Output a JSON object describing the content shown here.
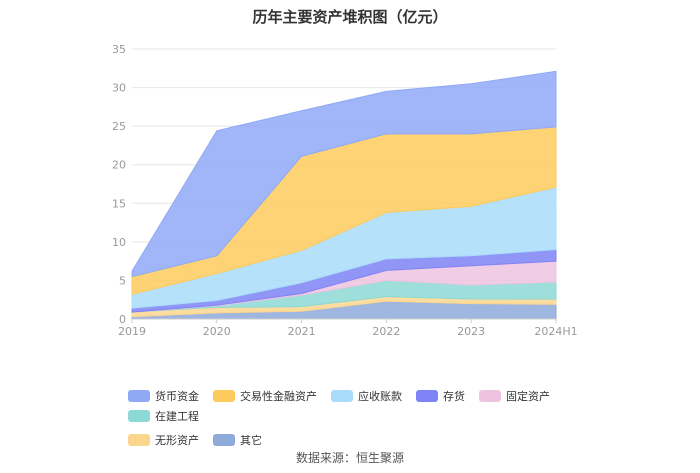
{
  "chart_data": {
    "type": "area",
    "stacked": true,
    "title": "历年主要资产堆积图（亿元）",
    "categories": [
      "2019",
      "2020",
      "2021",
      "2022",
      "2023",
      "2024H1"
    ],
    "ylim": [
      0,
      35
    ],
    "yticks": [
      "0",
      "5",
      "10",
      "15",
      "20",
      "25",
      "30",
      "35"
    ],
    "grid": true,
    "legend_position": "bottom",
    "series": [
      {
        "name": "其它",
        "color": "#8eaadb",
        "values": [
          0.3,
          0.8,
          1.0,
          2.3,
          2.0,
          1.9
        ]
      },
      {
        "name": "无形资产",
        "color": "#fbd78e",
        "values": [
          0.6,
          0.7,
          0.6,
          0.6,
          0.6,
          0.7
        ]
      },
      {
        "name": "在建工程",
        "color": "#8dd9d6",
        "values": [
          0.0,
          0.2,
          1.5,
          2.1,
          1.8,
          2.2
        ]
      },
      {
        "name": "固定资产",
        "color": "#eec3e0",
        "values": [
          0.0,
          0.1,
          0.2,
          1.3,
          2.5,
          2.7
        ]
      },
      {
        "name": "存货",
        "color": "#7e84f5",
        "values": [
          0.5,
          0.6,
          1.4,
          1.5,
          1.3,
          1.5
        ]
      },
      {
        "name": "应收账款",
        "color": "#a9dcfa",
        "values": [
          1.8,
          3.5,
          4.2,
          6.0,
          6.4,
          8.1
        ]
      },
      {
        "name": "交易性金融资产",
        "color": "#fdcb5d",
        "values": [
          2.3,
          2.3,
          12.2,
          10.2,
          9.4,
          7.8
        ]
      },
      {
        "name": "货币资金",
        "color": "#8fa9f7",
        "values": [
          0.7,
          16.2,
          5.9,
          5.5,
          6.5,
          7.2
        ]
      }
    ],
    "legend_order": [
      "货币资金",
      "交易性金融资产",
      "应收账款",
      "存货",
      "固定资产",
      "在建工程",
      "无形资产",
      "其它"
    ]
  },
  "source": "数据来源：恒生聚源"
}
